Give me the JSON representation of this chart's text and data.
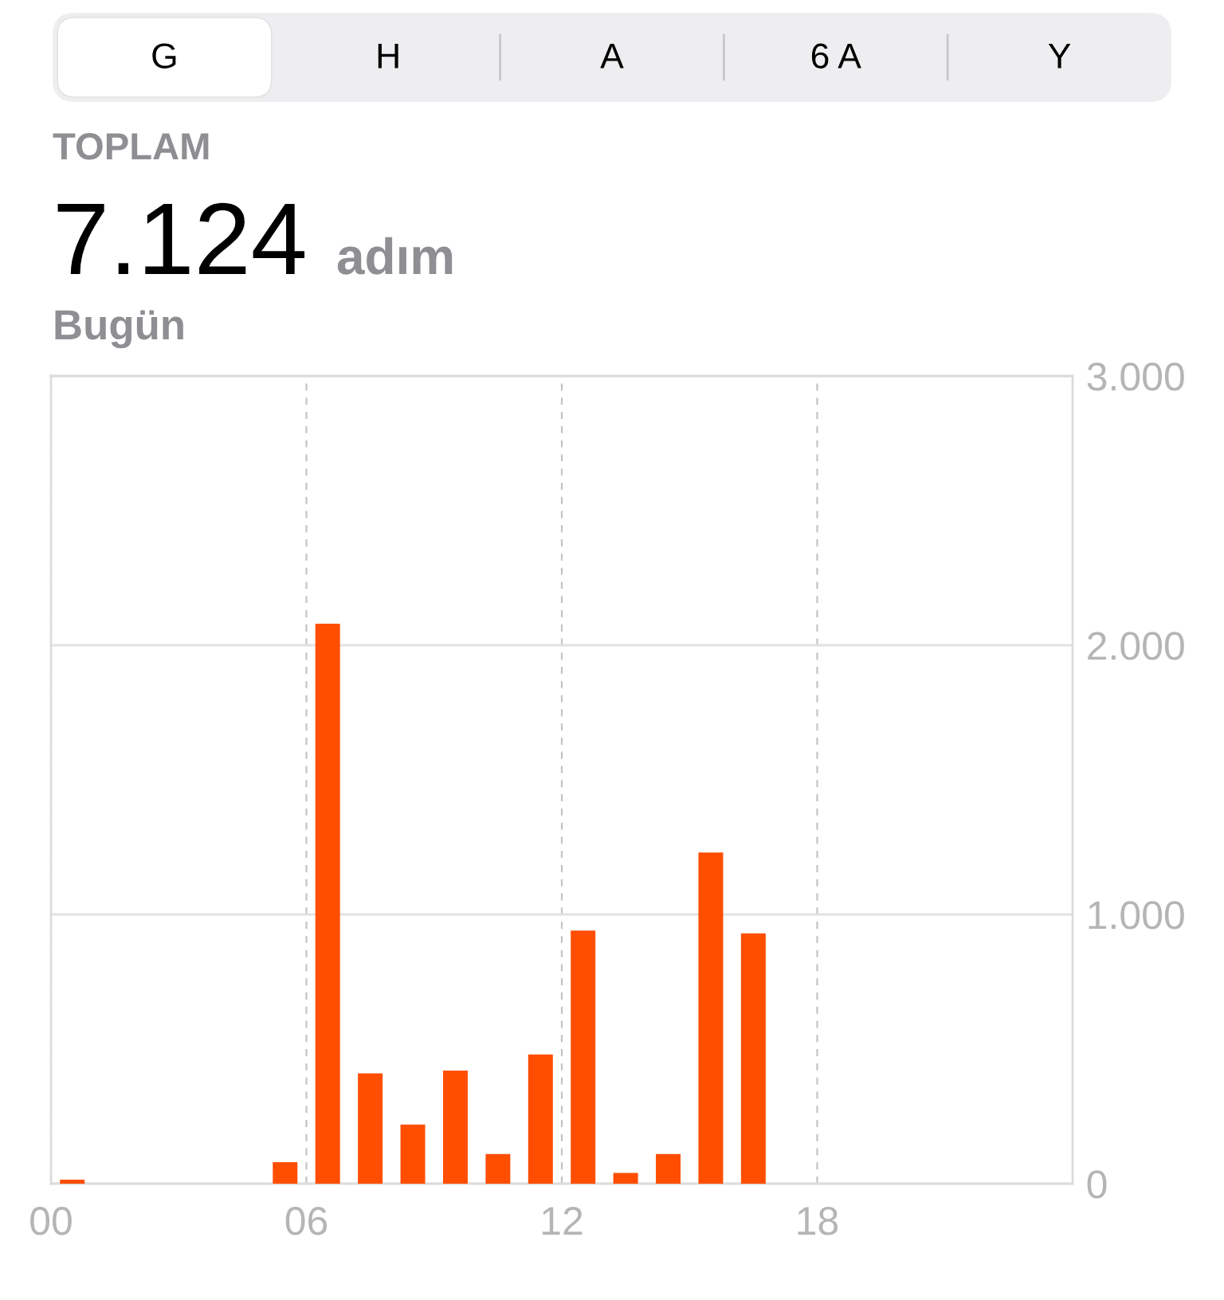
{
  "chart_data": {
    "type": "bar",
    "title": "TOPLAM",
    "subtitle": "Bugün",
    "annotations": [
      "G",
      "H",
      "A",
      "6 A",
      "Y",
      "7.124",
      "adım"
    ],
    "x": [
      0.5,
      5.5,
      6.5,
      7.5,
      8.5,
      9.5,
      10.5,
      11.5,
      12.5,
      13.5,
      14.5,
      15.5,
      16.5
    ],
    "values": [
      15,
      80,
      2080,
      410,
      220,
      420,
      110,
      480,
      940,
      40,
      110,
      1230,
      930
    ],
    "color": "#ff4e00",
    "xlim": [
      0,
      24
    ],
    "xticks": [
      {
        "value": 0,
        "label": "00"
      },
      {
        "value": 6,
        "label": "06"
      },
      12,
      18
    ],
    "ylim": [
      0,
      3000
    ],
    "yticks": [
      0,
      {
        "value": 1000,
        "label": "1.000"
      },
      {
        "value": 2000,
        "label": "2.000"
      },
      {
        "value": 3000,
        "label": "3.000"
      }
    ],
    "grid": true
  }
}
